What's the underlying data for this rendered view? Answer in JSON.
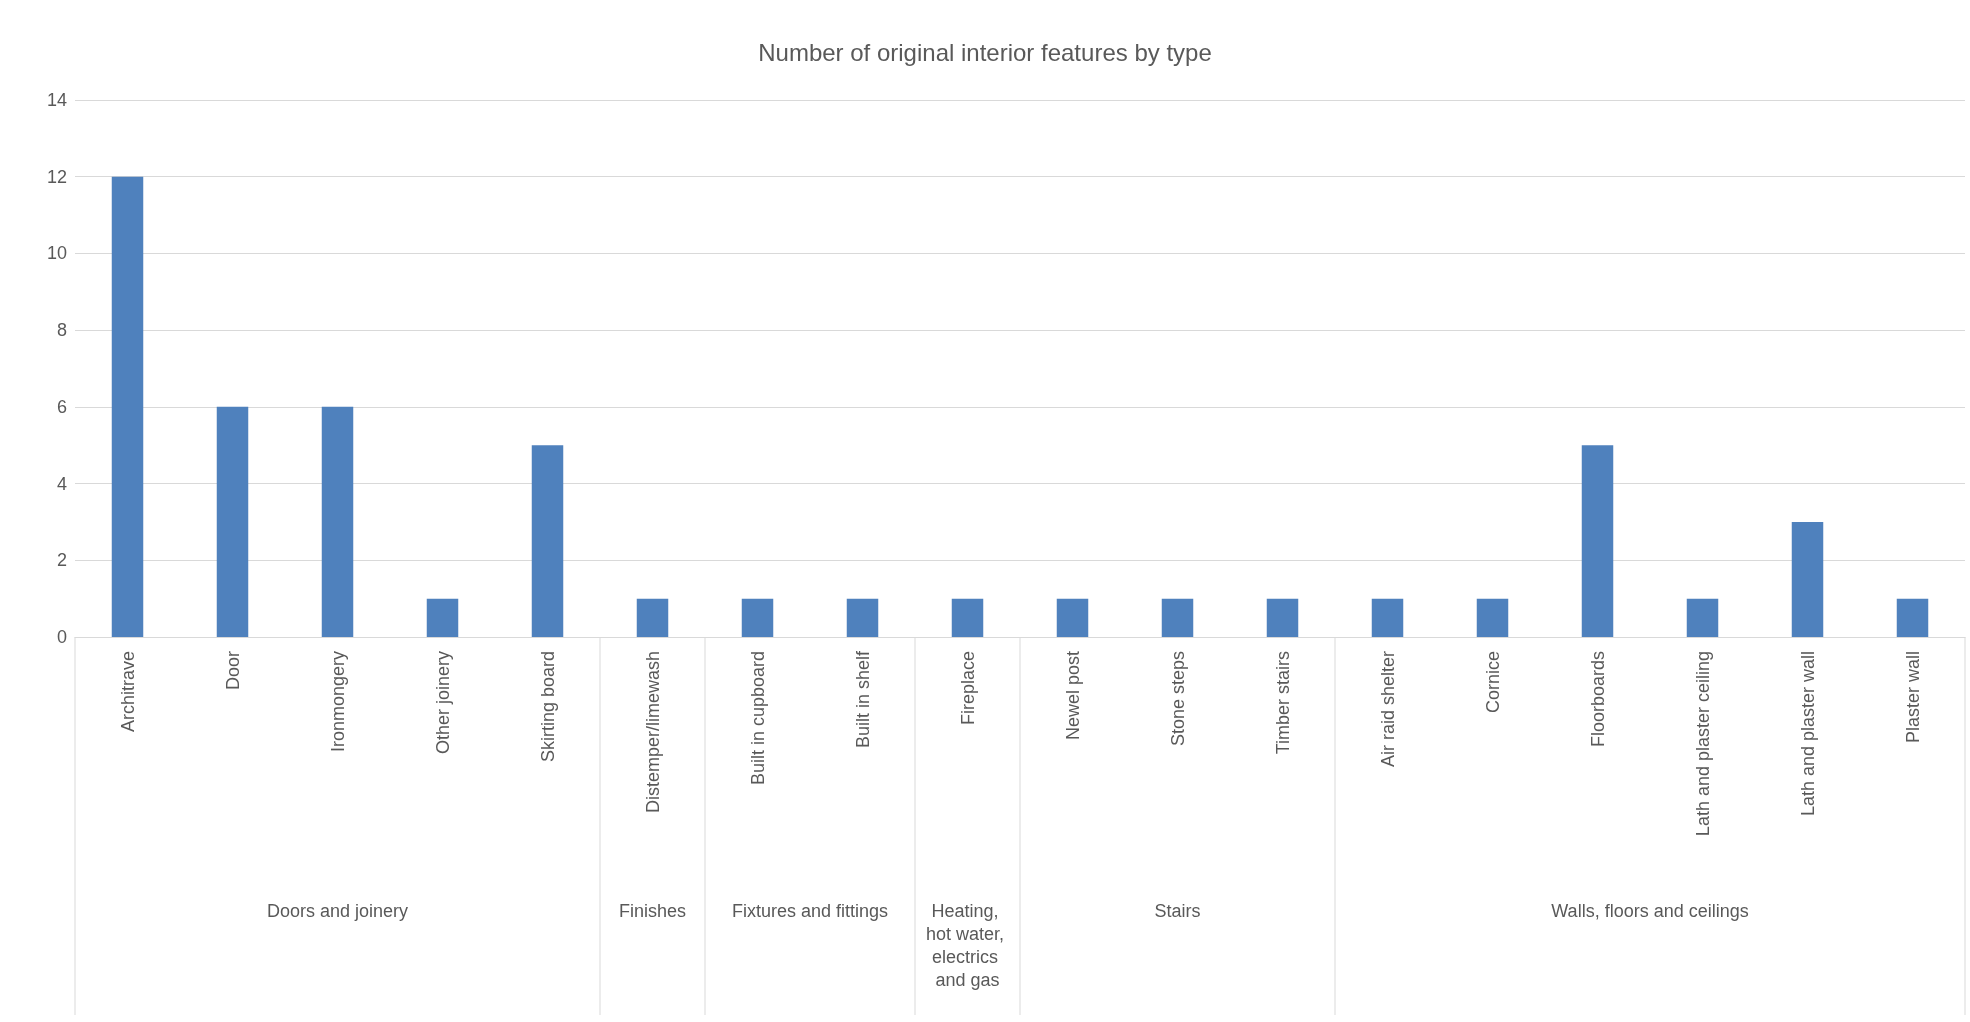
{
  "chart_data": {
    "type": "bar",
    "title": "Number of original interior features by type",
    "categories": [
      "Architrave",
      "Door",
      "Ironmongery",
      "Other joinery",
      "Skirting board",
      "Distemper/limewash",
      "Built in cupboard",
      "Built in shelf",
      "Fireplace",
      "Newel post",
      "Stone steps",
      "Timber stairs",
      "Air raid shelter",
      "Cornice",
      "Floorboards",
      "Lath and plaster ceiling",
      "Lath and plaster wall",
      "Plaster wall"
    ],
    "values": [
      12,
      6,
      6,
      1,
      5,
      1,
      1,
      1,
      1,
      1,
      1,
      1,
      1,
      1,
      5,
      1,
      3,
      1
    ],
    "color": "#4f81bd",
    "ylim": [
      0,
      14
    ],
    "yticks": [
      0,
      2,
      4,
      6,
      8,
      10,
      12,
      14
    ],
    "grid": "y",
    "annotations": [
      "Doors and joinery",
      "Finishes",
      "Fixtures and fittings",
      "Heating, hot water, electrics and gas",
      "Stairs",
      "Walls, floors and ceilings"
    ]
  }
}
